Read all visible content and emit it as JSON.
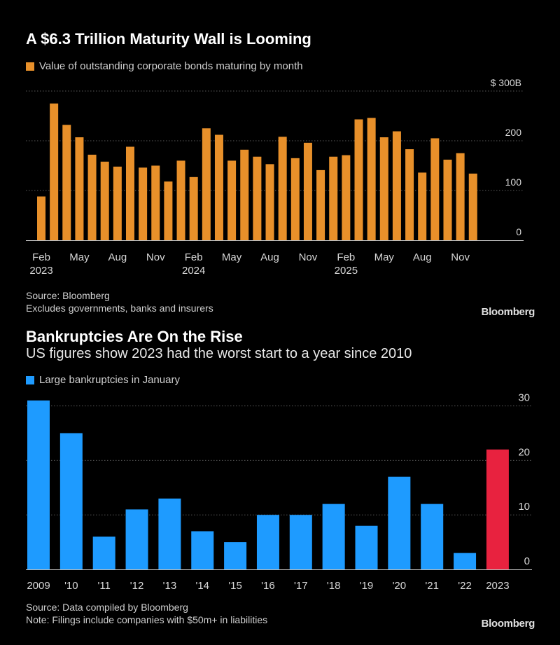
{
  "chart1": {
    "title": "A $6.3 Trillion Maturity Wall is Looming",
    "legend": "Value of outstanding corporate bonds maturing by month",
    "legend_color": "#E8902A",
    "source": "Source: Bloomberg",
    "note": "Excludes governments, banks and insurers",
    "brand": "Bloomberg"
  },
  "chart2": {
    "title": "Bankruptcies Are On the Rise",
    "subtitle": "US figures show 2023 had the worst start to a year since 2010",
    "legend": "Large bankruptcies in January",
    "legend_color": "#1E9BFF",
    "highlight_color": "#E8223F",
    "source": "Source: Data compiled by Bloomberg",
    "note": "Note: Filings include companies with $50m+ in liabilities",
    "brand": "Bloomberg"
  },
  "chart_data": [
    {
      "type": "bar",
      "title": "A $6.3 Trillion Maturity Wall is Looming",
      "series_name": "Value of outstanding corporate bonds maturing by month",
      "unit": "$B",
      "ylim": [
        0,
        300
      ],
      "yticks": [
        {
          "value": 0,
          "label": "0"
        },
        {
          "value": 100,
          "label": "100"
        },
        {
          "value": 200,
          "label": "200"
        },
        {
          "value": 300,
          "label": "$ 300B"
        }
      ],
      "x_tick_labels": [
        {
          "index": 0,
          "label": "Feb",
          "sub": "2023"
        },
        {
          "index": 3,
          "label": "May",
          "sub": ""
        },
        {
          "index": 6,
          "label": "Aug",
          "sub": ""
        },
        {
          "index": 9,
          "label": "Nov",
          "sub": ""
        },
        {
          "index": 12,
          "label": "Feb",
          "sub": "2024"
        },
        {
          "index": 15,
          "label": "May",
          "sub": ""
        },
        {
          "index": 18,
          "label": "Aug",
          "sub": ""
        },
        {
          "index": 21,
          "label": "Nov",
          "sub": ""
        },
        {
          "index": 24,
          "label": "Feb",
          "sub": "2025"
        },
        {
          "index": 27,
          "label": "May",
          "sub": ""
        },
        {
          "index": 30,
          "label": "Aug",
          "sub": ""
        },
        {
          "index": 33,
          "label": "Nov",
          "sub": ""
        }
      ],
      "values": [
        88,
        275,
        232,
        207,
        172,
        158,
        148,
        188,
        146,
        150,
        118,
        160,
        127,
        225,
        212,
        160,
        182,
        168,
        153,
        208,
        165,
        196,
        141,
        168,
        171,
        243,
        246,
        207,
        219,
        183,
        136,
        205,
        162,
        175,
        134
      ]
    },
    {
      "type": "bar",
      "title": "Bankruptcies Are On the Rise",
      "series_name": "Large bankruptcies in January",
      "ylim": [
        0,
        30
      ],
      "yticks": [
        {
          "value": 0,
          "label": "0"
        },
        {
          "value": 10,
          "label": "10"
        },
        {
          "value": 20,
          "label": "20"
        },
        {
          "value": 30,
          "label": "30"
        }
      ],
      "categories": [
        "2009",
        "'10",
        "'11",
        "'12",
        "'13",
        "'14",
        "'15",
        "'16",
        "'17",
        "'18",
        "'19",
        "'20",
        "'21",
        "'22",
        "2023"
      ],
      "values": [
        31,
        25,
        6,
        11,
        13,
        7,
        5,
        10,
        10,
        12,
        8,
        17,
        12,
        3,
        22
      ],
      "highlight_index": 14
    }
  ]
}
